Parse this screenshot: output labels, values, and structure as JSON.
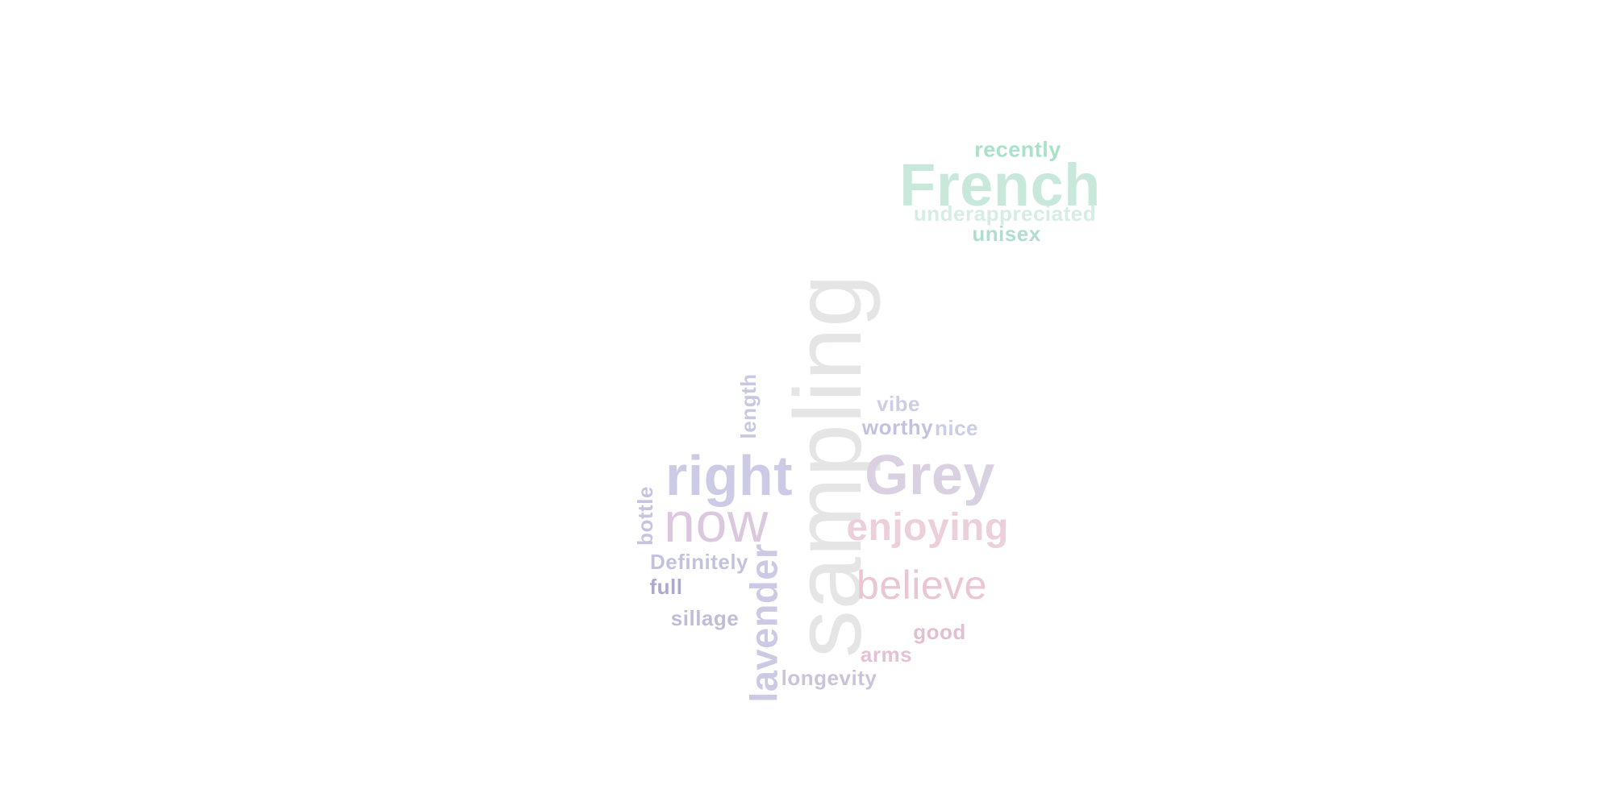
{
  "words": [
    {
      "id": "recently",
      "text": "recently",
      "color": "#a8e2c8"
    },
    {
      "id": "french",
      "text": "French",
      "color": "#c9e8dc"
    },
    {
      "id": "underappreciated",
      "text": "underappreciated",
      "color": "#d6ece5"
    },
    {
      "id": "unisex",
      "text": "unisex",
      "color": "#b1ddd0"
    },
    {
      "id": "sampling",
      "text": "sampling",
      "color": "#e5e5e5"
    },
    {
      "id": "length",
      "text": "length",
      "color": "#c8c8e2"
    },
    {
      "id": "vibe",
      "text": "vibe",
      "color": "#cfcde5"
    },
    {
      "id": "worthy",
      "text": "worthy",
      "color": "#c2c2e0"
    },
    {
      "id": "nice",
      "text": "nice",
      "color": "#cacde6"
    },
    {
      "id": "right",
      "text": "right",
      "color": "#cdcae6"
    },
    {
      "id": "grey",
      "text": "Grey",
      "color": "#d9d0e2"
    },
    {
      "id": "bottle",
      "text": "bottle",
      "color": "#c8c3e0"
    },
    {
      "id": "now",
      "text": "now",
      "color": "#dcc8de"
    },
    {
      "id": "enjoying",
      "text": "enjoying",
      "color": "#ebcfdb"
    },
    {
      "id": "definitely",
      "text": "Definitely",
      "color": "#c3c1de"
    },
    {
      "id": "lavender",
      "text": "lavender",
      "color": "#cbc9e4"
    },
    {
      "id": "believe",
      "text": "believe",
      "color": "#eac6d4"
    },
    {
      "id": "full",
      "text": "full",
      "color": "#aca8d0"
    },
    {
      "id": "sillage",
      "text": "sillage",
      "color": "#c1bdd8"
    },
    {
      "id": "good",
      "text": "good",
      "color": "#e0bfd0"
    },
    {
      "id": "arms",
      "text": "arms",
      "color": "#e3c2d4"
    },
    {
      "id": "longevity",
      "text": "longevity",
      "color": "#cbc3d8"
    }
  ]
}
